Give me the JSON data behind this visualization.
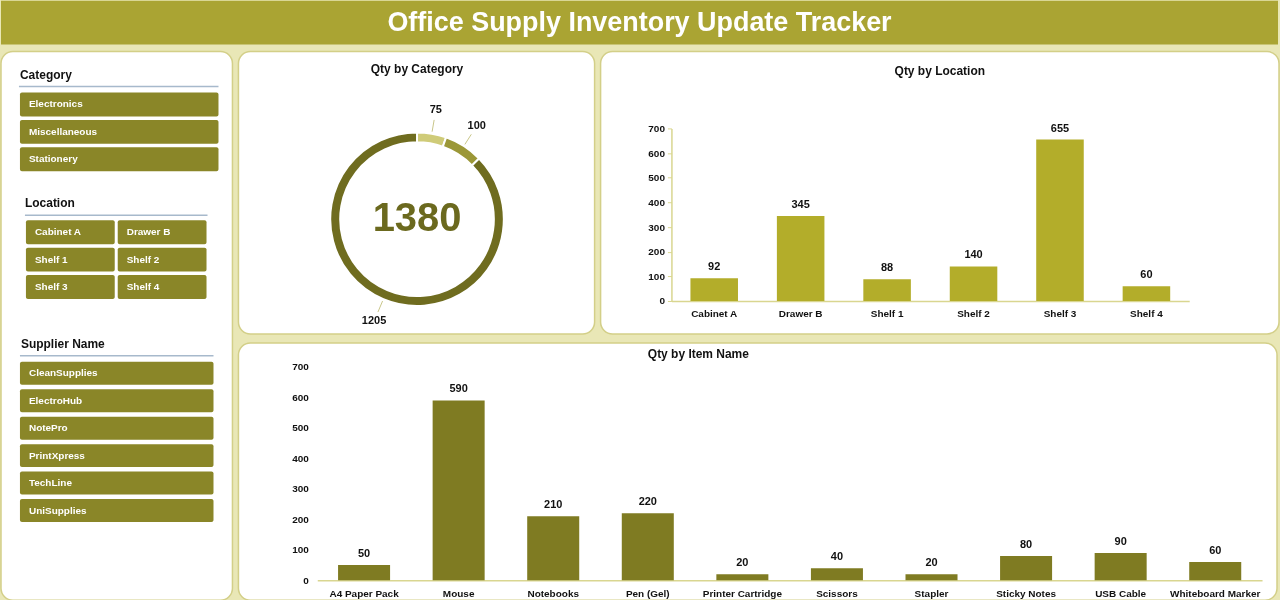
{
  "chart_data": [
    {
      "type": "other",
      "title": "Office Supply Inventory Update Tracker"
    },
    {
      "type": "other",
      "title": "Category",
      "annotations": [
        "Electronics",
        "Miscellaneous",
        "Stationery"
      ]
    },
    {
      "type": "other",
      "title": "Location",
      "annotations": [
        "Cabinet A",
        "Drawer B",
        "Shelf 1",
        "Shelf 2",
        "Shelf 3",
        "Shelf 4"
      ]
    },
    {
      "type": "other",
      "title": "Supplier Name",
      "annotations": [
        "CleanSupplies",
        "ElectroHub",
        "NotePro",
        "PrintXpress",
        "TechLine",
        "UniSupplies"
      ]
    },
    {
      "type": "donut",
      "title": "Qty by Category",
      "categories": [
        null,
        null,
        null
      ],
      "values": [
        75,
        100,
        1205
      ],
      "colors": [
        "#cfcb78",
        "#9b9737",
        "#6f6c1f"
      ],
      "data_labels": true,
      "annotations": [
        "1380"
      ]
    },
    {
      "type": "bar",
      "title": "Qty by Location",
      "categories": [
        "Cabinet A",
        "Drawer B",
        "Shelf 1",
        "Shelf 2",
        "Shelf 3",
        "Shelf 4"
      ],
      "values": [
        92,
        345,
        88,
        140,
        655,
        60
      ],
      "color": "#b3ad2a",
      "ylim": [
        0,
        700
      ],
      "yticks": [
        0,
        100,
        200,
        300,
        400,
        500,
        600,
        700
      ],
      "data_labels": true
    },
    {
      "type": "bar",
      "title": "Qty by Item Name",
      "categories": [
        "A4 Paper Pack",
        "Mouse",
        "Notebooks",
        "Pen (Gel)",
        "Printer Cartridge",
        "Scissors",
        "Stapler",
        "Sticky Notes",
        "USB Cable",
        "Whiteboard Marker"
      ],
      "values": [
        50,
        590,
        210,
        220,
        20,
        40,
        20,
        80,
        90,
        60
      ],
      "color": "#7f7b22",
      "ylim": [
        0,
        700
      ],
      "yticks": [
        0,
        100,
        200,
        300,
        400,
        500,
        600,
        700
      ],
      "data_labels": true
    }
  ]
}
